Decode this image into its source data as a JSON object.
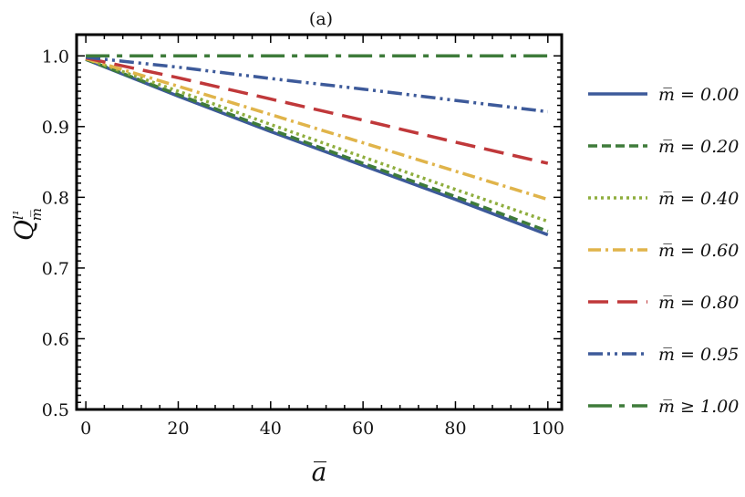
{
  "chart_data": {
    "type": "line",
    "title": "(a)",
    "xlabel": "a̅",
    "ylabel": "Q",
    "ylabel_superscript": "l¹",
    "ylabel_subscript": "m̅",
    "xlim": [
      -2,
      103
    ],
    "ylim": [
      0.5,
      1.03
    ],
    "xticks": [
      0,
      20,
      40,
      60,
      80,
      100
    ],
    "xtick_labels": [
      "0",
      "20",
      "40",
      "60",
      "80",
      "100"
    ],
    "yticks": [
      0.5,
      0.6,
      0.7,
      0.8,
      0.9,
      1.0
    ],
    "ytick_labels": [
      "0.5",
      "0.6",
      "0.7",
      "0.8",
      "0.9",
      "1.0"
    ],
    "grid": false,
    "legend_position": "right",
    "x": [
      0,
      20,
      40,
      60,
      80,
      100
    ],
    "series": [
      {
        "name": "m̅ = 0.00",
        "color": "#3d5a9a",
        "dash": "solid",
        "values": [
          0.995,
          0.943,
          0.893,
          0.845,
          0.797,
          0.747
        ]
      },
      {
        "name": "m̅ = 0.20",
        "color": "#3e7b3a",
        "dash": "dashed",
        "values": [
          0.995,
          0.945,
          0.896,
          0.848,
          0.801,
          0.752
        ]
      },
      {
        "name": "m̅ = 0.40",
        "color": "#8fae3e",
        "dash": "dotted",
        "values": [
          0.996,
          0.95,
          0.903,
          0.857,
          0.811,
          0.766
        ]
      },
      {
        "name": "m̅ = 0.60",
        "color": "#e0b44a",
        "dash": "dashdot",
        "values": [
          0.996,
          0.957,
          0.917,
          0.877,
          0.837,
          0.797
        ]
      },
      {
        "name": "m̅ = 0.80",
        "color": "#c0383a",
        "dash": "longdash",
        "values": [
          0.997,
          0.969,
          0.939,
          0.909,
          0.878,
          0.848
        ]
      },
      {
        "name": "m̅ = 0.95",
        "color": "#3d5a9a",
        "dash": "dashdotdot",
        "values": [
          0.998,
          0.984,
          0.968,
          0.953,
          0.937,
          0.921
        ]
      },
      {
        "name": "m̅ ≥ 1.00",
        "color": "#3e7b3a",
        "dash": "longdashdot",
        "values": [
          1.0,
          1.0,
          1.0,
          1.0,
          1.0,
          1.0
        ]
      }
    ]
  }
}
